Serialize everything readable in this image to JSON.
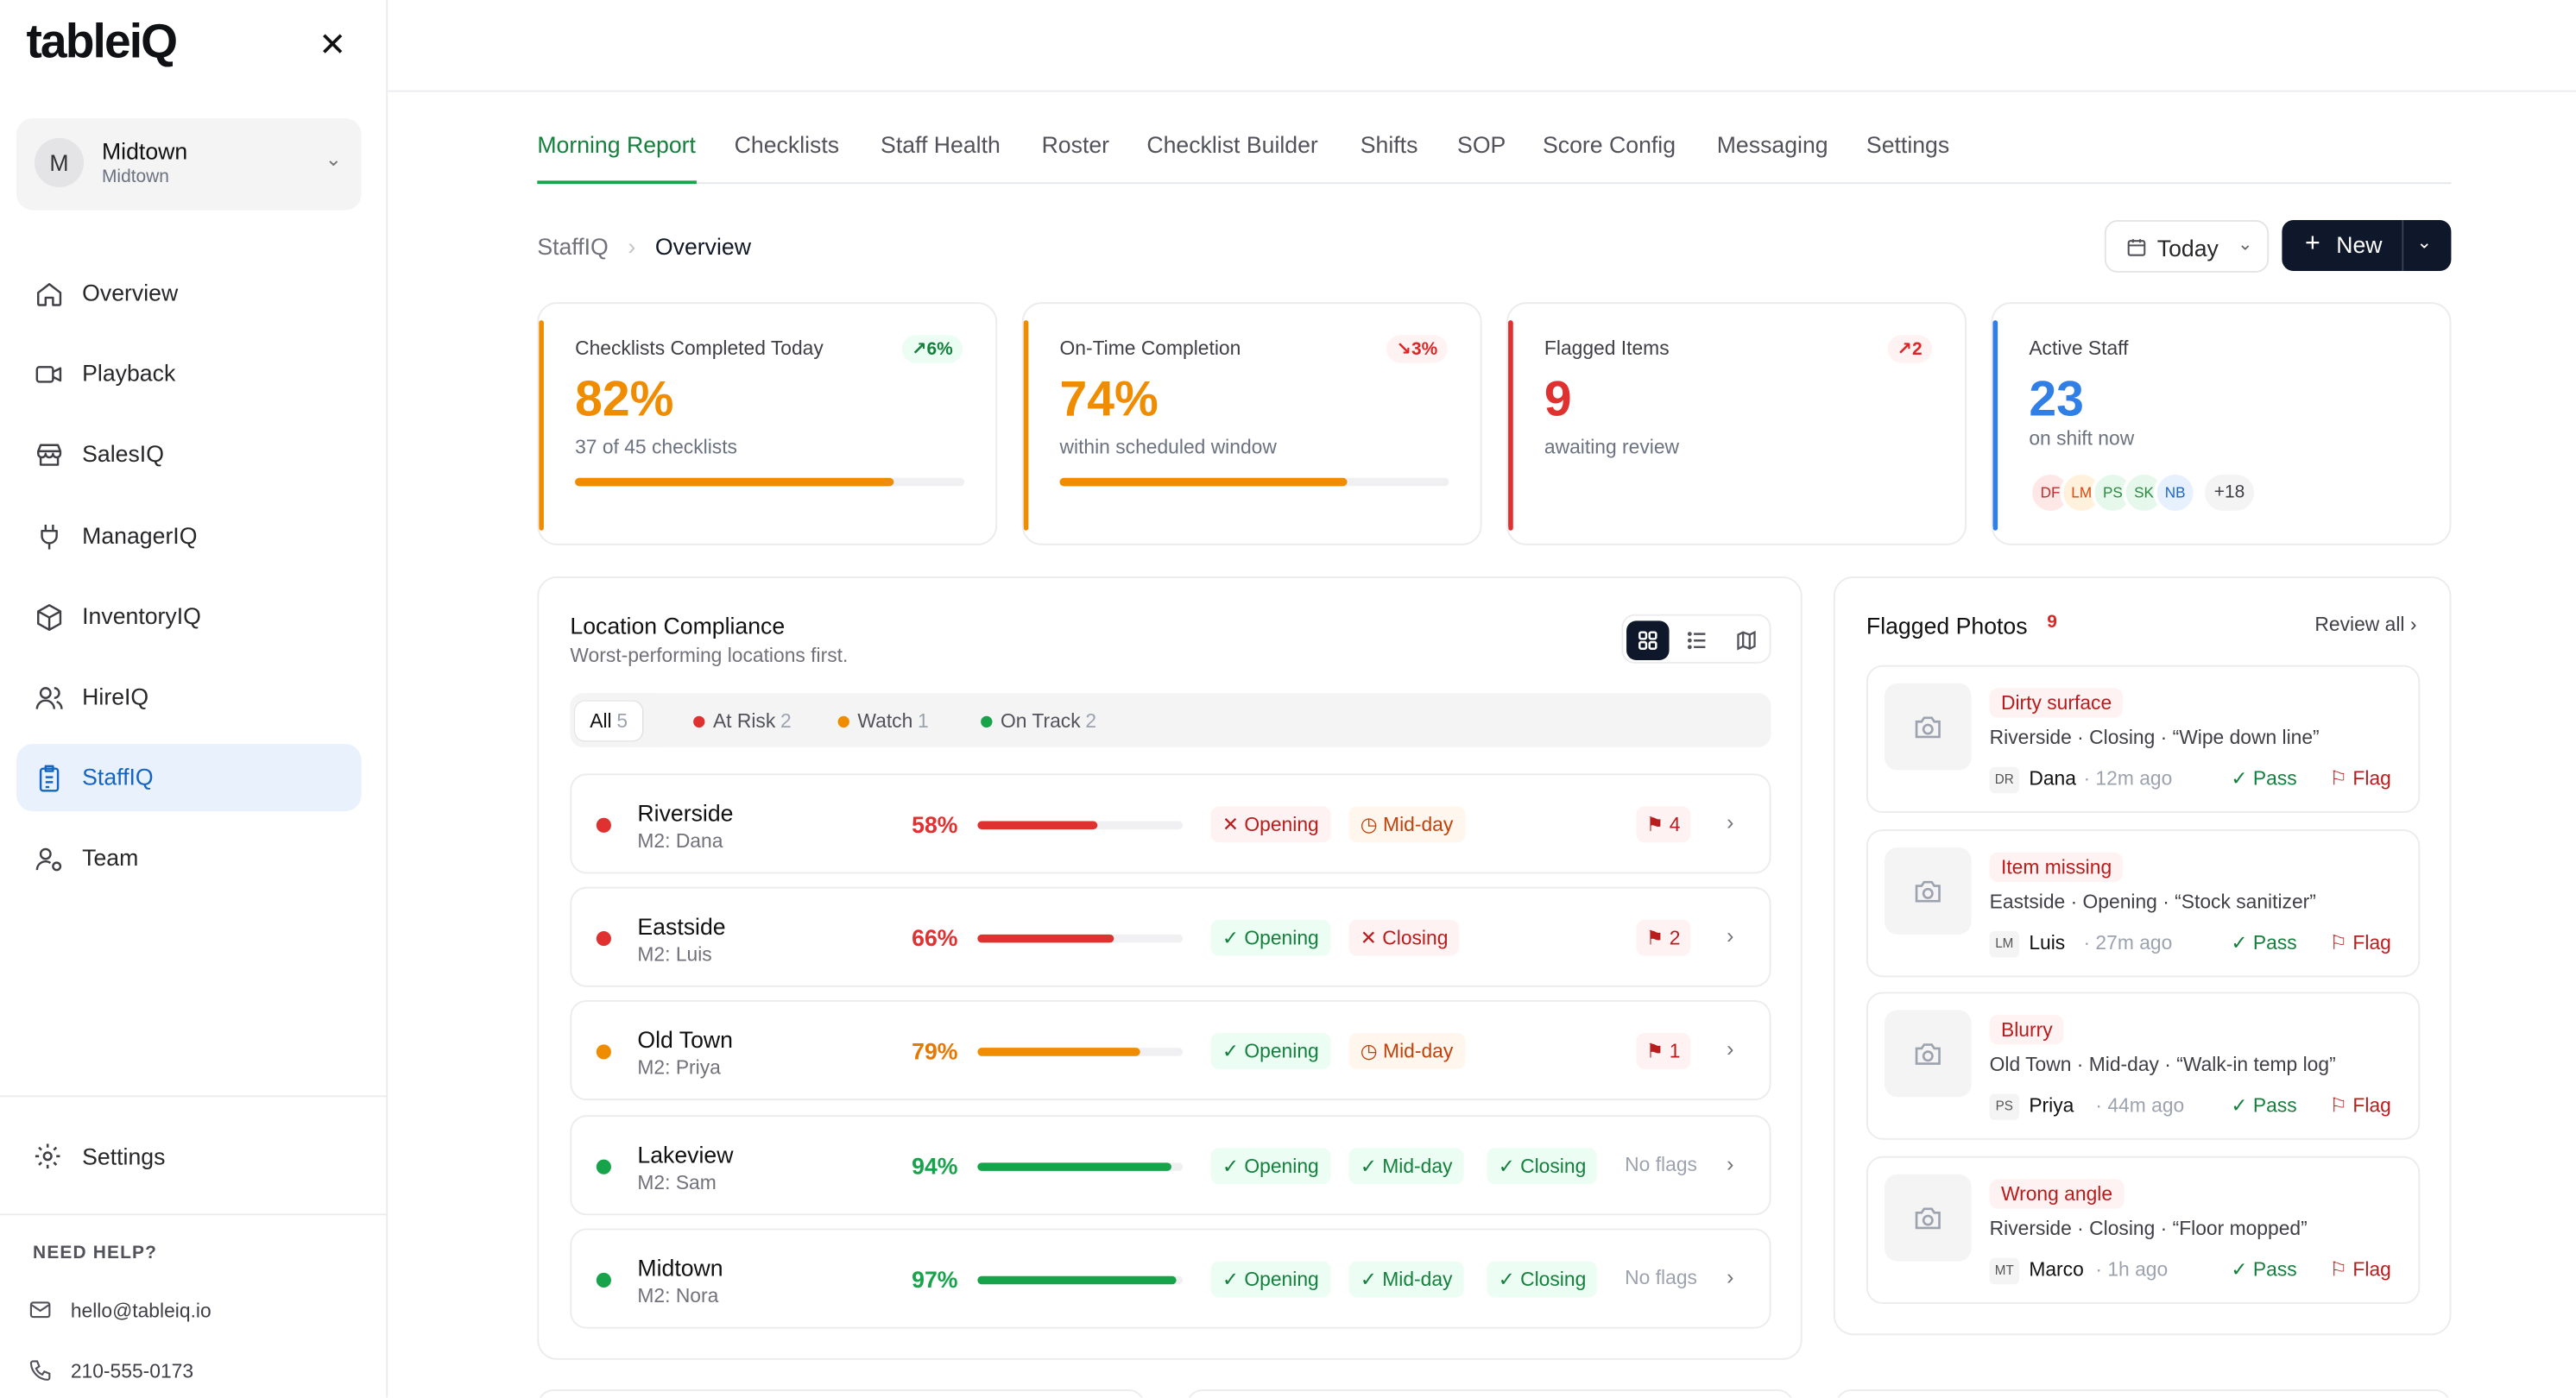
{
  "app": {
    "logo": "tableiQ"
  },
  "location": {
    "initial": "M",
    "name": "Midtown",
    "sub": "Midtown"
  },
  "nav": [
    {
      "label": "Overview",
      "icon": "home-icon"
    },
    {
      "label": "Playback",
      "icon": "video-icon"
    },
    {
      "label": "SalesIQ",
      "icon": "store-icon"
    },
    {
      "label": "ManagerIQ",
      "icon": "plug-icon"
    },
    {
      "label": "InventoryIQ",
      "icon": "box-icon"
    },
    {
      "label": "HireIQ",
      "icon": "users-icon"
    },
    {
      "label": "StaffIQ",
      "icon": "clipboard-icon",
      "active": true
    },
    {
      "label": "Team",
      "icon": "user-gear-icon"
    }
  ],
  "sidebar_bottom": {
    "settings": "Settings",
    "help_title": "NEED HELP?",
    "email": "hello@tableiq.io",
    "phone": "210-555-0173"
  },
  "tabs": [
    "Morning Report",
    "Checklists",
    "Staff Health",
    "Roster",
    "Checklist Builder",
    "Shifts",
    "SOP",
    "Score Config",
    "Messaging",
    "Settings"
  ],
  "breadcrumb": {
    "root": "StaffIQ",
    "current": "Overview"
  },
  "date_picker": "Today",
  "new_button": "New",
  "kpis": [
    {
      "title": "Checklists Completed Today",
      "trend": "6%",
      "trend_dir": "up",
      "value": "82%",
      "sub": "37 of 45 checklists",
      "progress": 0.82,
      "color": "#f08c00"
    },
    {
      "title": "On-Time Completion",
      "trend": "3%",
      "trend_dir": "down",
      "value": "74%",
      "sub": "within scheduled window",
      "progress": 0.74,
      "color": "#f08c00"
    },
    {
      "title": "Flagged Items",
      "trend": "2",
      "trend_dir": "up",
      "value": "9",
      "sub": "awaiting review",
      "color": "#e03131"
    },
    {
      "title": "Active Staff",
      "value": "23",
      "sub": "on shift now",
      "color": "#2f7fe6",
      "staff": [
        "DF",
        "LM",
        "PS",
        "SK",
        "NB"
      ],
      "more": "+18"
    }
  ],
  "compliance": {
    "title": "Location Compliance",
    "subtitle": "Worst-performing locations first.",
    "filters": [
      {
        "label": "All",
        "count": "5"
      },
      {
        "label": "At Risk",
        "count": "2",
        "color": "#e03131"
      },
      {
        "label": "Watch",
        "count": "1",
        "color": "#f08c00"
      },
      {
        "label": "On Track",
        "count": "2",
        "color": "#16a34a"
      }
    ],
    "rows": [
      {
        "name": "Riverside",
        "manager": "M2: Dana",
        "pct": "58%",
        "value": 0.58,
        "status": "risk",
        "checks": [
          {
            "label": "Opening",
            "state": "fail"
          },
          {
            "label": "Mid-day",
            "state": "late"
          }
        ],
        "flags": "4"
      },
      {
        "name": "Eastside",
        "manager": "M2: Luis",
        "pct": "66%",
        "value": 0.66,
        "status": "risk",
        "checks": [
          {
            "label": "Opening",
            "state": "ok"
          },
          {
            "label": "Closing",
            "state": "fail"
          }
        ],
        "flags": "2"
      },
      {
        "name": "Old Town",
        "manager": "M2: Priya",
        "pct": "79%",
        "value": 0.79,
        "status": "watch",
        "checks": [
          {
            "label": "Opening",
            "state": "ok"
          },
          {
            "label": "Mid-day",
            "state": "late"
          }
        ],
        "flags": "1"
      },
      {
        "name": "Lakeview",
        "manager": "M2: Sam",
        "pct": "94%",
        "value": 0.94,
        "status": "ok",
        "checks": [
          {
            "label": "Opening",
            "state": "ok"
          },
          {
            "label": "Mid-day",
            "state": "ok"
          },
          {
            "label": "Closing",
            "state": "ok"
          }
        ],
        "flags": null,
        "noflags": "No flags"
      },
      {
        "name": "Midtown",
        "manager": "M2: Nora",
        "pct": "97%",
        "value": 0.97,
        "status": "ok",
        "checks": [
          {
            "label": "Opening",
            "state": "ok"
          },
          {
            "label": "Mid-day",
            "state": "ok"
          },
          {
            "label": "Closing",
            "state": "ok"
          }
        ],
        "flags": null,
        "noflags": "No flags"
      }
    ]
  },
  "flagged_photos": {
    "title": "Flagged Photos",
    "count": "9",
    "review_all": "Review all",
    "items": [
      {
        "tag": "Dirty surface",
        "desc": "Riverside · Closing · “Wipe down line”",
        "initials": "DR",
        "who": "Dana",
        "ago": "· 12m ago",
        "pass": "Pass",
        "flag": "Flag"
      },
      {
        "tag": "Item missing",
        "desc": "Eastside · Opening · “Stock sanitizer”",
        "initials": "LM",
        "who": "Luis",
        "ago": "· 27m ago",
        "pass": "Pass",
        "flag": "Flag"
      },
      {
        "tag": "Blurry",
        "desc": "Old Town · Mid-day · “Walk-in temp log”",
        "initials": "PS",
        "who": "Priya",
        "ago": "· 44m ago",
        "pass": "Pass",
        "flag": "Flag"
      },
      {
        "tag": "Wrong angle",
        "desc": "Riverside · Closing · “Floor mopped”",
        "initials": "MT",
        "who": "Marco",
        "ago": "· 1h ago",
        "pass": "Pass",
        "flag": "Flag"
      }
    ]
  },
  "colors": {
    "risk": "#e03131",
    "watch": "#f08c00",
    "ok": "#16a34a",
    "blue": "#2f7fe6"
  }
}
